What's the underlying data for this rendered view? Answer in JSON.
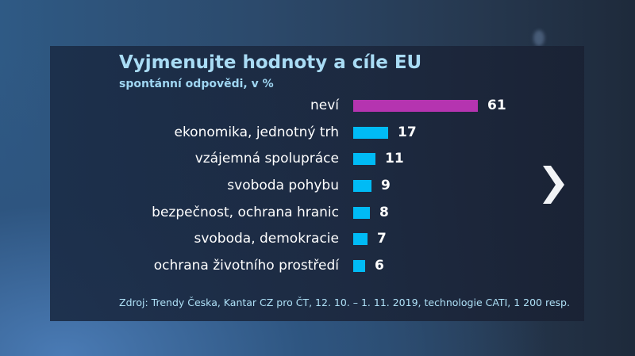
{
  "header": {
    "title": "Vyjmenujte hodnoty a cíle EU",
    "subtitle": "spontánní odpovědi, v %"
  },
  "colors": {
    "highlight_bar": "#b534b0",
    "bar": "#00bbf5",
    "title": "#a9dcf5",
    "text": "#ffffff"
  },
  "chart_data": {
    "type": "bar",
    "orientation": "horizontal",
    "title": "Vyjmenujte hodnoty a cíle EU",
    "subtitle": "spontánní odpovědi, v %",
    "categories": [
      "neví",
      "ekonomika, jednotný trh",
      "vzájemná spolupráce",
      "svoboda pohybu",
      "bezpečnost, ochrana hranic",
      "svoboda, demokracie",
      "ochrana životního prostředí"
    ],
    "values": [
      61,
      17,
      11,
      9,
      8,
      7,
      6
    ],
    "value_labels": [
      "61",
      "17",
      "11",
      "9",
      "8",
      "7",
      "6"
    ],
    "xlabel": "",
    "ylabel": "%",
    "grid": false,
    "legend": null,
    "source": "Zdroj: Trendy Česka, Kantar CZ pro ČT, 12. 10. – 1. 11. 2019, technologie CATI, 1 200 resp."
  },
  "rows": [
    {
      "label": "neví",
      "value": "61"
    },
    {
      "label": "ekonomika, jednotný trh",
      "value": "17"
    },
    {
      "label": "vzájemná spolupráce",
      "value": "11"
    },
    {
      "label": "svoboda pohybu",
      "value": "9"
    },
    {
      "label": "bezpečnost, ochrana hranic",
      "value": "8"
    },
    {
      "label": "svoboda, demokracie",
      "value": "7"
    },
    {
      "label": "ochrana životního prostředí",
      "value": "6"
    }
  ],
  "footer": {
    "source": "Zdroj: Trendy Česka, Kantar CZ pro ČT, 12. 10. – 1. 11. 2019, technologie CATI, 1 200 resp."
  },
  "nav": {
    "next_icon": "chevron-right-icon"
  }
}
